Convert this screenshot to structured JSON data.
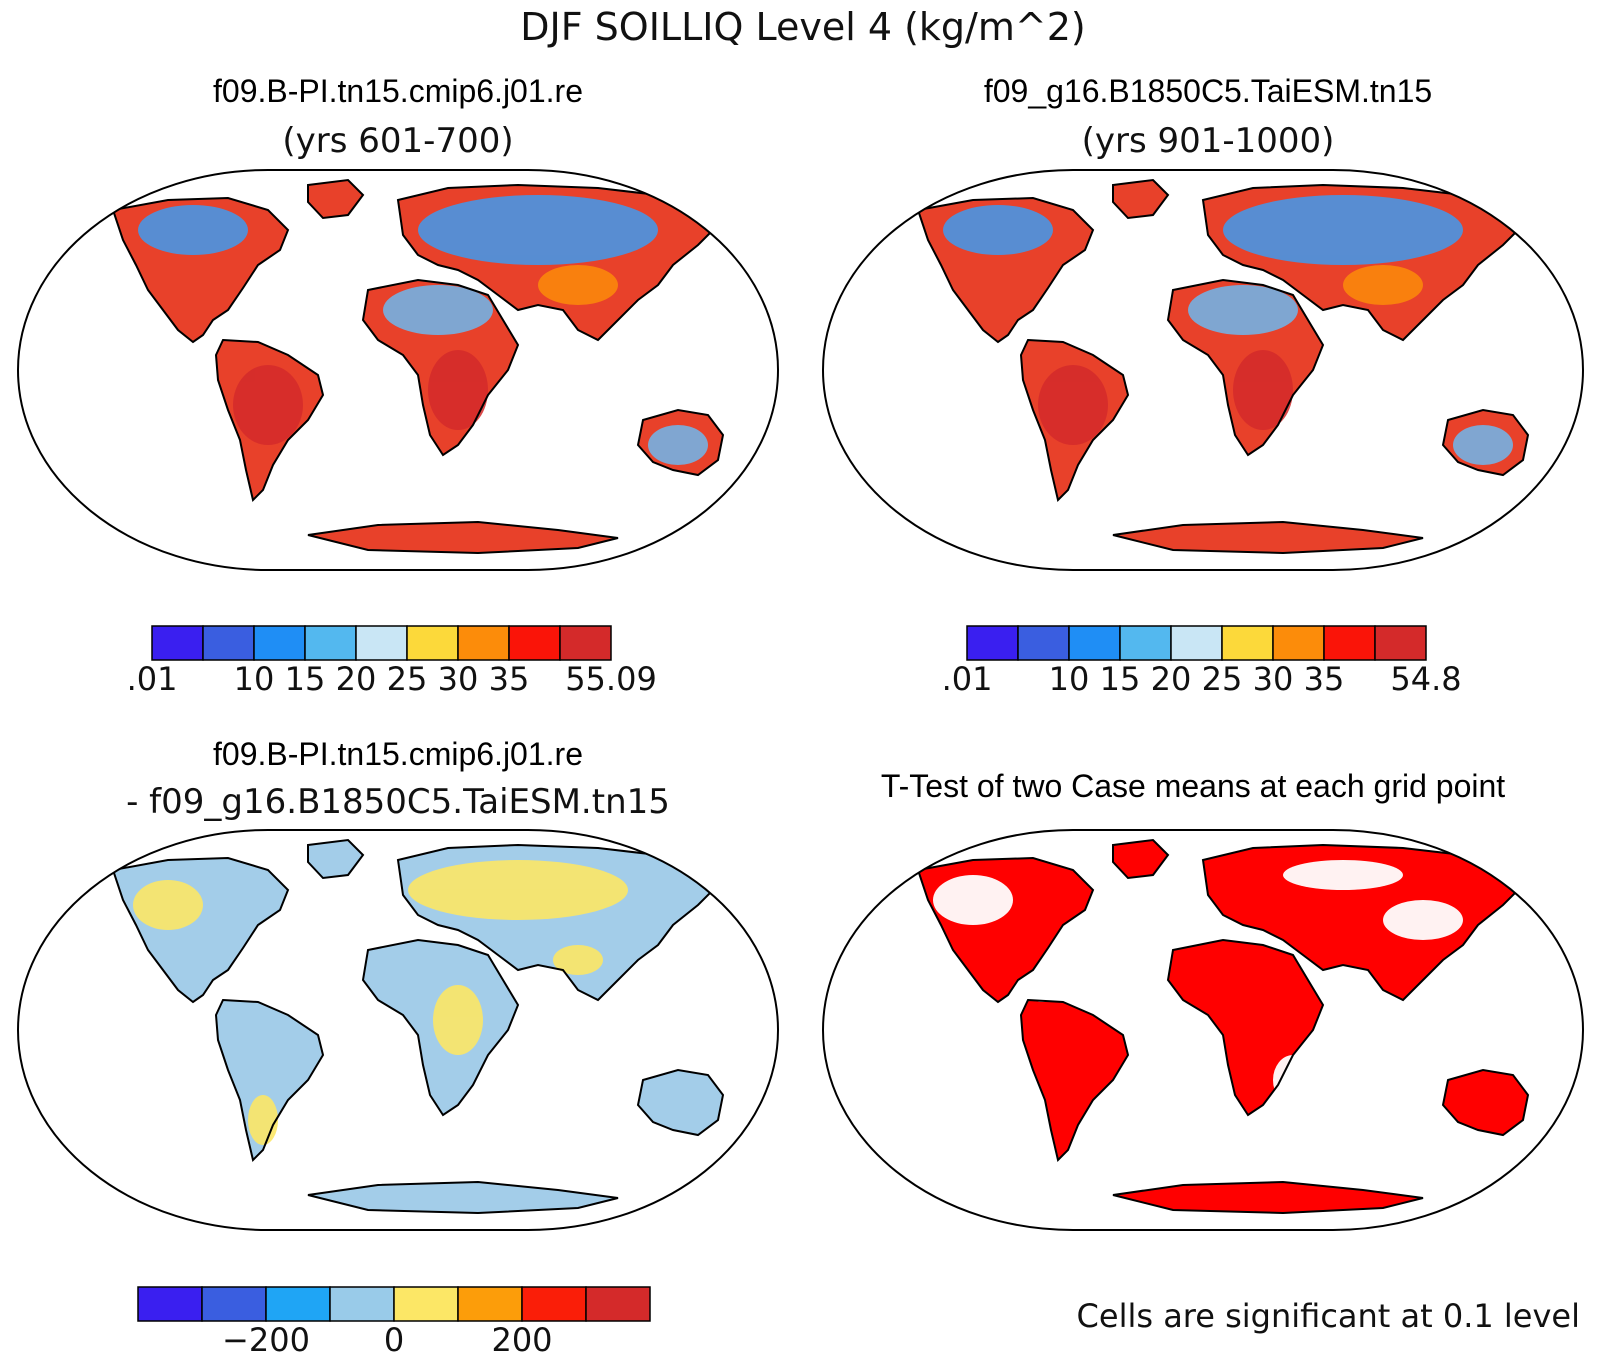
{
  "main_title": "DJF SOILLIQ Level 4 (kg/m^2)",
  "panels": [
    {
      "id": "case1",
      "title": "f09.B-PI.tn15.cmip6.j01.re",
      "subtitle": "(yrs 601-700)",
      "colorbar": {
        "colors": [
          "#3a1ff0",
          "#3a5ee0",
          "#1f8ef5",
          "#53b8ef",
          "#c9e6f5",
          "#fcd93a",
          "#fc8c0a",
          "#fa1408",
          "#d42a2a"
        ],
        "tick_labels": [
          ".01",
          "",
          "10",
          "15",
          "20",
          "25",
          "30",
          "35",
          "",
          "55.09"
        ]
      }
    },
    {
      "id": "case2",
      "title": "f09_g16.B1850C5.TaiESM.tn15",
      "subtitle": "(yrs 901-1000)",
      "colorbar": {
        "colors": [
          "#3a1ff0",
          "#3a5ee0",
          "#1f8ef5",
          "#53b8ef",
          "#c9e6f5",
          "#fcd93a",
          "#fc8c0a",
          "#fa1408",
          "#d42a2a"
        ],
        "tick_labels": [
          ".01",
          "",
          "10",
          "15",
          "20",
          "25",
          "30",
          "35",
          "",
          "54.8"
        ]
      }
    },
    {
      "id": "diff",
      "title": "f09.B-PI.tn15.cmip6.j01.re",
      "subtitle": "- f09_g16.B1850C5.TaiESM.tn15",
      "colorbar": {
        "colors": [
          "#3a1ff0",
          "#3a5ee0",
          "#1fa5f5",
          "#99cbe9",
          "#fce766",
          "#fc9d0a",
          "#fa1e08",
          "#d42a2a"
        ],
        "tick_labels": [
          "",
          "",
          "−200",
          "",
          "0",
          "",
          "200",
          "",
          ""
        ]
      }
    },
    {
      "id": "ttest",
      "title": "T-Test of two Case means at each grid point",
      "footnote": "Cells are significant at 0.1 level"
    }
  ],
  "colors": {
    "ocean": "#ffffff",
    "coast": "#000000",
    "significant": "#ff0000"
  }
}
